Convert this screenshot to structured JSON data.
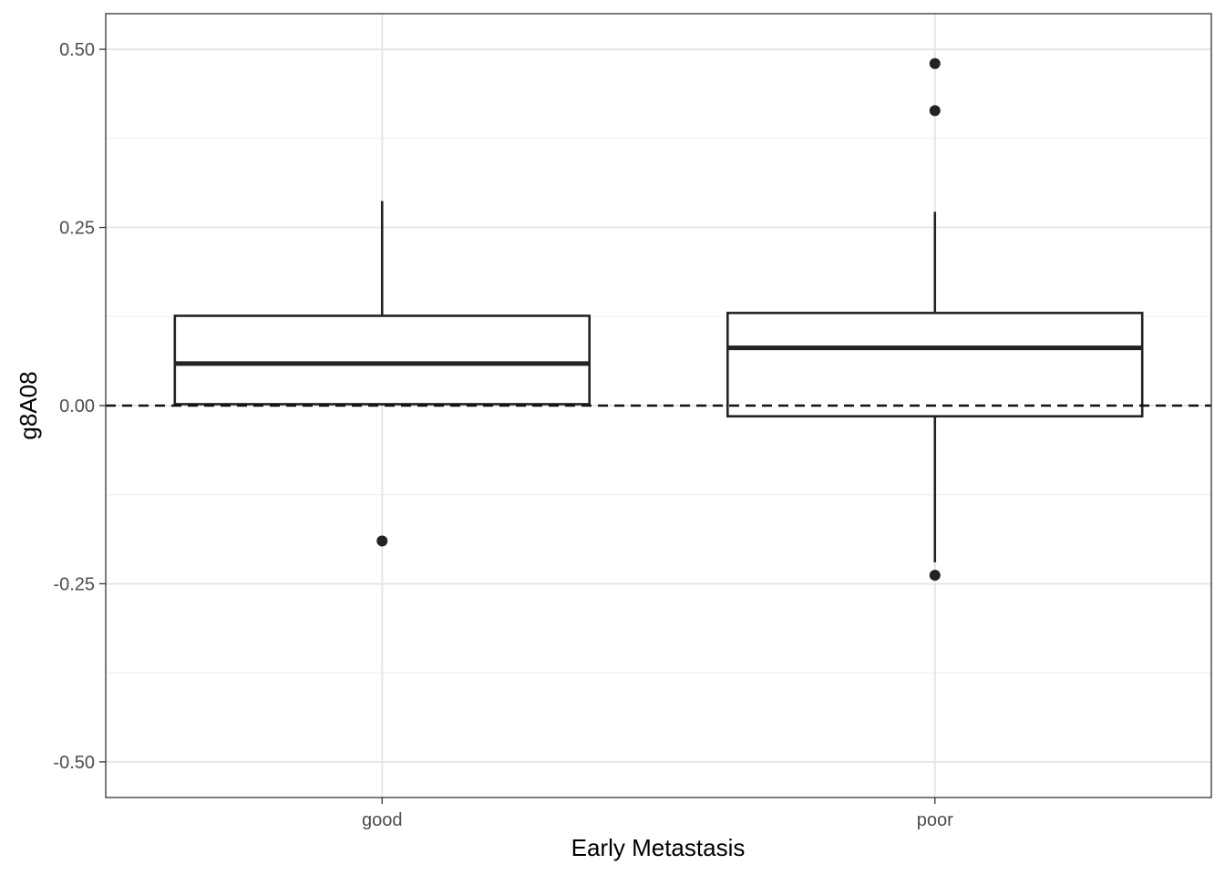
{
  "chart_data": {
    "type": "box",
    "xlabel": "Early Metastasis",
    "ylabel": "g8A08",
    "ylim": [
      -0.55,
      0.55
    ],
    "yticks": [
      -0.5,
      -0.25,
      0.0,
      0.25,
      0.5
    ],
    "ytick_labels": [
      "-0.50",
      "-0.25",
      "0.00",
      "0.25",
      "0.50"
    ],
    "categories": [
      "good",
      "poor"
    ],
    "boxes": [
      {
        "category": "good",
        "whisker_low": 0.0,
        "q1": 0.002,
        "median": 0.059,
        "q3": 0.126,
        "whisker_high": 0.287,
        "outliers": [
          -0.19
        ]
      },
      {
        "category": "poor",
        "whisker_low": -0.22,
        "q1": -0.015,
        "median": 0.081,
        "q3": 0.13,
        "whisker_high": 0.272,
        "outliers": [
          0.48,
          0.414,
          -0.238
        ]
      }
    ],
    "reference_line": {
      "y": 0,
      "style": "dashed"
    },
    "grid": true,
    "legend": "none"
  }
}
